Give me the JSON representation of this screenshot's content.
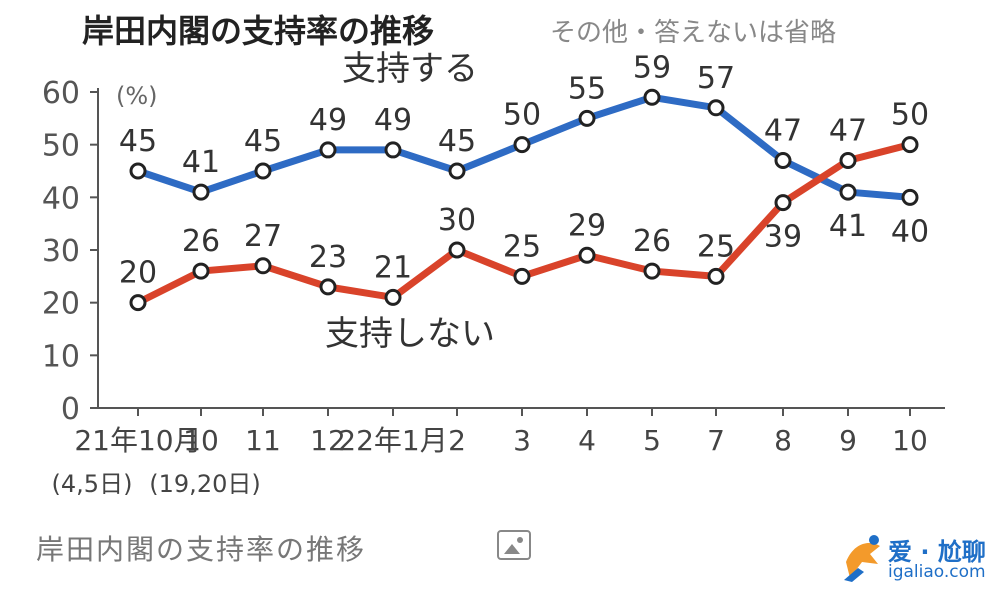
{
  "header": {
    "title": "岸田内閣の支持率の推移",
    "subtitle": "その他・答えないは省略"
  },
  "caption": "岸田内閣の支持率の推移",
  "watermark": {
    "text": "爱 · 尬聊",
    "url": "igaliao.com"
  },
  "colors": {
    "support": "#2e6bc4",
    "oppose": "#d9432a",
    "axis": "#555555"
  },
  "chart_data": {
    "type": "line",
    "title": "岸田内閣の支持率の推移",
    "subtitle": "その他・答えないは省略",
    "ylabel": "(%)",
    "ylim": [
      0,
      60
    ],
    "yticks": [
      0,
      10,
      20,
      30,
      40,
      50,
      60
    ],
    "categories": [
      "21年10月",
      "10",
      "11",
      "12",
      "22年1月",
      "2",
      "3",
      "4",
      "5",
      "7",
      "8",
      "9",
      "10"
    ],
    "sublabels": [
      "(4,5日)",
      "(19,20日)"
    ],
    "series": [
      {
        "name": "支持する",
        "color": "#2e6bc4",
        "values": [
          45,
          41,
          45,
          49,
          49,
          45,
          50,
          55,
          59,
          57,
          47,
          41,
          40
        ]
      },
      {
        "name": "支持しない",
        "color": "#d9432a",
        "values": [
          20,
          26,
          27,
          23,
          21,
          30,
          25,
          29,
          26,
          25,
          39,
          47,
          50
        ]
      }
    ]
  }
}
